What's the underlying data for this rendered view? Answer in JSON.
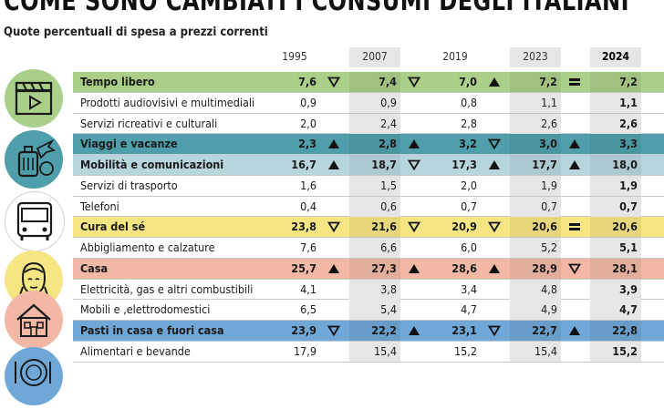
{
  "title": "COME SONO CAMBIATI I CONSUMI DEGLI ITALIANI",
  "subtitle": "Quote percentuali di spesa a prezzi correnti",
  "colors": {
    "Tempo libero": "#a9cf88",
    "Viaggi e vacanze": "#4e9fab",
    "Mobilità e comunicazioni": "#b6d6dc",
    "Cura del sé": "#f5e583",
    "Casa": "#f2b8a5",
    "Pasti in casa e fuori casa": "#6fa7d6"
  },
  "chart_data": {
    "type": "table",
    "title": "COME SONO CAMBIATI I CONSUMI DEGLI ITALIANI",
    "subtitle": "Quote percentuali di spesa a prezzi correnti",
    "columns": [
      "1995",
      "2007",
      "2019",
      "2023",
      "2024"
    ],
    "rows": [
      {
        "label": "Tempo libero",
        "category": true,
        "values": [
          "7,6",
          "7,4",
          "7,0",
          "7,2",
          "7,2"
        ],
        "trend": [
          "down",
          "down",
          "up",
          "equal"
        ]
      },
      {
        "label": "Prodotti audiovisivi e multimediali",
        "category": false,
        "values": [
          "0,9",
          "0,9",
          "0,8",
          "1,1",
          "1,1"
        ]
      },
      {
        "label": "Servizi ricreativi e culturali",
        "category": false,
        "values": [
          "2,0",
          "2,4",
          "2,8",
          "2,6",
          "2,6"
        ]
      },
      {
        "label": "Viaggi e vacanze",
        "category": true,
        "values": [
          "2,3",
          "2,8",
          "3,2",
          "3,0",
          "3,3"
        ],
        "trend": [
          "up",
          "up",
          "down",
          "up"
        ]
      },
      {
        "label": "Mobilità e comunicazioni",
        "category": true,
        "values": [
          "16,7",
          "18,7",
          "17,3",
          "17,7",
          "18,0"
        ],
        "trend": [
          "up",
          "down",
          "up",
          "up"
        ]
      },
      {
        "label": "Servizi di trasporto",
        "category": false,
        "values": [
          "1,6",
          "1,5",
          "2,0",
          "1,9",
          "1,9"
        ]
      },
      {
        "label": "Telefoni",
        "category": false,
        "values": [
          "0,4",
          "0,6",
          "0,7",
          "0,7",
          "0,7"
        ]
      },
      {
        "label": "Cura del sé",
        "category": true,
        "values": [
          "23,8",
          "21,6",
          "20,9",
          "20,6",
          "20,6"
        ],
        "trend": [
          "down",
          "down",
          "down",
          "equal"
        ]
      },
      {
        "label": "Abbigliamento e calzature",
        "category": false,
        "values": [
          "7,6",
          "6,6",
          "6,0",
          "5,2",
          "5,1"
        ]
      },
      {
        "label": "Casa",
        "category": true,
        "values": [
          "25,7",
          "27,3",
          "28,6",
          "28,9",
          "28,1"
        ],
        "trend": [
          "up",
          "up",
          "up",
          "down"
        ]
      },
      {
        "label": "Elettricità, gas e altri combustibili",
        "category": false,
        "values": [
          "4,1",
          "3,8",
          "3,4",
          "4,8",
          "3,9"
        ]
      },
      {
        "label": "Mobili e ,elettrodomestici",
        "category": false,
        "values": [
          "6,5",
          "5,4",
          "4,7",
          "4,9",
          "4,7"
        ]
      },
      {
        "label": "Pasti in casa e fuori casa",
        "category": true,
        "values": [
          "23,9",
          "22,2",
          "23,1",
          "22,7",
          "22,8"
        ],
        "trend": [
          "down",
          "up",
          "down",
          "up"
        ]
      },
      {
        "label": "Alimentari e bevande",
        "category": false,
        "values": [
          "17,9",
          "15,4",
          "15,2",
          "15,4",
          "15,2"
        ]
      }
    ]
  },
  "icons": [
    "clapperboard-icon",
    "travel-icon",
    "bus-icon",
    "self-care-icon",
    "house-icon",
    "meal-icon"
  ]
}
